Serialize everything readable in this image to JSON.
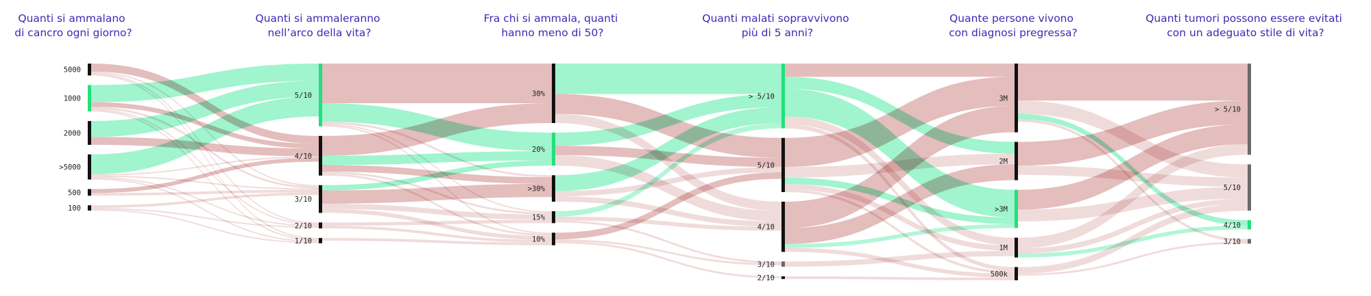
{
  "colors": {
    "title": "#3d2ab2",
    "flow_green": "#66eeb0",
    "flow_red": "#c97c7c",
    "bar_dark": "#111111",
    "bar_green": "#22e07a",
    "bar_gray": "#6a6a6a"
  },
  "columns": [
    {
      "title": [
        "Quanti si ammalano",
        "di cancro ogni giorno?"
      ],
      "nodes": [
        {
          "label": "5000",
          "color": "dark"
        },
        {
          "label": "1000",
          "color": "green"
        },
        {
          "label": "2000",
          "color": "dark"
        },
        {
          "label": ">5000",
          "color": "dark"
        },
        {
          "label": "500",
          "color": "dark"
        },
        {
          "label": "100",
          "color": "dark"
        }
      ]
    },
    {
      "title": [
        "Quanti si ammaleranno",
        "nell’arco della vita?"
      ],
      "nodes": [
        {
          "label": "5/10",
          "color": "green"
        },
        {
          "label": "4/10",
          "color": "dark"
        },
        {
          "label": "3/10",
          "color": "dark"
        },
        {
          "label": "2/10",
          "color": "dark"
        },
        {
          "label": "1/10",
          "color": "dark"
        }
      ]
    },
    {
      "title": [
        "Fra chi si ammala, quanti",
        "hanno meno di 50?"
      ],
      "nodes": [
        {
          "label": "30%",
          "color": "dark"
        },
        {
          "label": "20%",
          "color": "green"
        },
        {
          "label": ">30%",
          "color": "dark"
        },
        {
          "label": "15%",
          "color": "dark"
        },
        {
          "label": "10%",
          "color": "dark"
        }
      ]
    },
    {
      "title": [
        "Quanti malati sopravvivono",
        "più di 5 anni?"
      ],
      "nodes": [
        {
          "label": "> 5/10",
          "color": "green"
        },
        {
          "label": "5/10",
          "color": "dark"
        },
        {
          "label": "4/10",
          "color": "dark"
        },
        {
          "label": "3/10",
          "color": "gray"
        },
        {
          "label": "2/10",
          "color": "dark"
        }
      ]
    },
    {
      "title": [
        "Quante persone vivono",
        "con diagnosi pregressa?"
      ],
      "nodes": [
        {
          "label": "3M",
          "color": "dark"
        },
        {
          "label": "2M",
          "color": "dark"
        },
        {
          "label": ">3M",
          "color": "green"
        },
        {
          "label": "1M",
          "color": "dark"
        },
        {
          "label": "500k",
          "color": "dark"
        }
      ]
    },
    {
      "title": [
        "Quanti tumori possono essere evitati",
        "con un adeguato stile di vita?"
      ],
      "nodes": [
        {
          "label": "> 5/10",
          "color": "gray"
        },
        {
          "label": "5/10",
          "color": "gray"
        },
        {
          "label": "4/10",
          "color": "green"
        },
        {
          "label": "3/10",
          "color": "gray"
        }
      ]
    }
  ],
  "flows": [
    {
      "col": 0,
      "from": "5000",
      "to": "4/10",
      "value": 12,
      "color": "red",
      "strength": "medium"
    },
    {
      "col": 0,
      "from": "5000",
      "to": "3/10",
      "value": 2,
      "color": "red",
      "strength": "light"
    },
    {
      "col": 0,
      "from": "5000",
      "to": "2/10",
      "value": 2,
      "color": "red",
      "strength": "light"
    },
    {
      "col": 0,
      "from": "5000",
      "to": "1/10",
      "value": 2,
      "color": "red",
      "strength": "light"
    },
    {
      "col": 0,
      "from": "1000",
      "to": "5/10",
      "value": 26,
      "color": "green",
      "strength": "strong"
    },
    {
      "col": 0,
      "from": "1000",
      "to": "4/10",
      "value": 7,
      "color": "red",
      "strength": "medium"
    },
    {
      "col": 0,
      "from": "1000",
      "to": "3/10",
      "value": 3,
      "color": "red",
      "strength": "light"
    },
    {
      "col": 0,
      "from": "1000",
      "to": "2/10",
      "value": 2,
      "color": "red",
      "strength": "light"
    },
    {
      "col": 0,
      "from": "1000",
      "to": "1/10",
      "value": 2,
      "color": "red",
      "strength": "light"
    },
    {
      "col": 0,
      "from": "2000",
      "to": "5/10",
      "value": 24,
      "color": "green",
      "strength": "strong"
    },
    {
      "col": 0,
      "from": "2000",
      "to": "4/10",
      "value": 12,
      "color": "red",
      "strength": "medium"
    },
    {
      "col": 0,
      "from": ">5000",
      "to": "5/10",
      "value": 30,
      "color": "green",
      "strength": "strong"
    },
    {
      "col": 0,
      "from": ">5000",
      "to": "4/10",
      "value": 2,
      "color": "red",
      "strength": "light"
    },
    {
      "col": 0,
      "from": ">5000",
      "to": "3/10",
      "value": 2,
      "color": "red",
      "strength": "light"
    },
    {
      "col": 0,
      "from": ">5000",
      "to": "2/10",
      "value": 2,
      "color": "red",
      "strength": "light"
    },
    {
      "col": 0,
      "from": ">5000",
      "to": "1/10",
      "value": 2,
      "color": "red",
      "strength": "light"
    },
    {
      "col": 0,
      "from": "500",
      "to": "4/10",
      "value": 6,
      "color": "red",
      "strength": "medium"
    },
    {
      "col": 0,
      "from": "500",
      "to": "3/10",
      "value": 4,
      "color": "red",
      "strength": "light"
    },
    {
      "col": 0,
      "from": "100",
      "to": "3/10",
      "value": 4,
      "color": "red",
      "strength": "light"
    },
    {
      "col": 0,
      "from": "100",
      "to": "2/10",
      "value": 2,
      "color": "red",
      "strength": "light"
    },
    {
      "col": 0,
      "from": "100",
      "to": "1/10",
      "value": 2,
      "color": "red",
      "strength": "light"
    },
    {
      "col": 1,
      "from": "5/10",
      "to": "30%",
      "value": 60,
      "color": "red",
      "strength": "medium"
    },
    {
      "col": 1,
      "from": "5/10",
      "to": "20%",
      "value": 28,
      "color": "green",
      "strength": "strong"
    },
    {
      "col": 1,
      "from": "5/10",
      "to": ">30%",
      "value": 3,
      "color": "red",
      "strength": "light"
    },
    {
      "col": 1,
      "from": "5/10",
      "to": "15%",
      "value": 2,
      "color": "red",
      "strength": "light"
    },
    {
      "col": 1,
      "from": "5/10",
      "to": "10%",
      "value": 2,
      "color": "red",
      "strength": "light"
    },
    {
      "col": 1,
      "from": "4/10",
      "to": "30%",
      "value": 30,
      "color": "red",
      "strength": "medium"
    },
    {
      "col": 1,
      "from": "4/10",
      "to": "20%",
      "value": 14,
      "color": "green",
      "strength": "strong"
    },
    {
      "col": 1,
      "from": "4/10",
      "to": ">30%",
      "value": 10,
      "color": "red",
      "strength": "medium"
    },
    {
      "col": 1,
      "from": "4/10",
      "to": "15%",
      "value": 3,
      "color": "red",
      "strength": "light"
    },
    {
      "col": 1,
      "from": "4/10",
      "to": "10%",
      "value": 3,
      "color": "red",
      "strength": "light"
    },
    {
      "col": 1,
      "from": "3/10",
      "to": "20%",
      "value": 8,
      "color": "green",
      "strength": "strong"
    },
    {
      "col": 1,
      "from": "3/10",
      "to": ">30%",
      "value": 20,
      "color": "red",
      "strength": "medium"
    },
    {
      "col": 1,
      "from": "3/10",
      "to": "15%",
      "value": 8,
      "color": "red",
      "strength": "light"
    },
    {
      "col": 1,
      "from": "3/10",
      "to": "10%",
      "value": 6,
      "color": "red",
      "strength": "light"
    },
    {
      "col": 1,
      "from": "2/10",
      "to": "15%",
      "value": 5,
      "color": "red",
      "strength": "light"
    },
    {
      "col": 1,
      "from": "2/10",
      "to": "10%",
      "value": 4,
      "color": "red",
      "strength": "light"
    },
    {
      "col": 1,
      "from": "1/10",
      "to": "10%",
      "value": 4,
      "color": "red",
      "strength": "light"
    },
    {
      "col": 2,
      "from": "30%",
      "to": "> 5/10",
      "value": 46,
      "color": "green",
      "strength": "strong"
    },
    {
      "col": 2,
      "from": "30%",
      "to": "5/10",
      "value": 30,
      "color": "red",
      "strength": "medium"
    },
    {
      "col": 2,
      "from": "30%",
      "to": "4/10",
      "value": 14,
      "color": "red",
      "strength": "light"
    },
    {
      "col": 2,
      "from": "20%",
      "to": "> 5/10",
      "value": 20,
      "color": "green",
      "strength": "strong"
    },
    {
      "col": 2,
      "from": "20%",
      "to": "5/10",
      "value": 14,
      "color": "red",
      "strength": "medium"
    },
    {
      "col": 2,
      "from": "20%",
      "to": "4/10",
      "value": 16,
      "color": "red",
      "strength": "light"
    },
    {
      "col": 2,
      "from": ">30%",
      "to": "> 5/10",
      "value": 24,
      "color": "green",
      "strength": "strong"
    },
    {
      "col": 2,
      "from": ">30%",
      "to": "5/10",
      "value": 8,
      "color": "red",
      "strength": "light"
    },
    {
      "col": 2,
      "from": ">30%",
      "to": "4/10",
      "value": 8,
      "color": "red",
      "strength": "light"
    },
    {
      "col": 2,
      "from": "15%",
      "to": "> 5/10",
      "value": 8,
      "color": "green",
      "strength": "medium"
    },
    {
      "col": 2,
      "from": "15%",
      "to": "4/10",
      "value": 6,
      "color": "red",
      "strength": "light"
    },
    {
      "col": 2,
      "from": "15%",
      "to": "3/10",
      "value": 3,
      "color": "red",
      "strength": "light"
    },
    {
      "col": 2,
      "from": "10%",
      "to": "5/10",
      "value": 10,
      "color": "red",
      "strength": "medium"
    },
    {
      "col": 2,
      "from": "10%",
      "to": "3/10",
      "value": 3,
      "color": "red",
      "strength": "light"
    },
    {
      "col": 2,
      "from": "10%",
      "to": "2/10",
      "value": 3,
      "color": "red",
      "strength": "light"
    },
    {
      "col": 3,
      "from": "> 5/10",
      "to": "3M",
      "value": 20,
      "color": "red",
      "strength": "medium"
    },
    {
      "col": 3,
      "from": "> 5/10",
      "to": "2M",
      "value": 18,
      "color": "green",
      "strength": "strong"
    },
    {
      "col": 3,
      "from": "> 5/10",
      "to": ">3M",
      "value": 42,
      "color": "green",
      "strength": "strong"
    },
    {
      "col": 3,
      "from": "> 5/10",
      "to": "1M",
      "value": 12,
      "color": "red",
      "strength": "light"
    },
    {
      "col": 3,
      "from": "> 5/10",
      "to": "500k",
      "value": 6,
      "color": "red",
      "strength": "light"
    },
    {
      "col": 3,
      "from": "5/10",
      "to": "3M",
      "value": 44,
      "color": "red",
      "strength": "medium"
    },
    {
      "col": 3,
      "from": "5/10",
      "to": "2M",
      "value": 16,
      "color": "red",
      "strength": "light"
    },
    {
      "col": 3,
      "from": "5/10",
      "to": ">3M",
      "value": 10,
      "color": "green",
      "strength": "strong"
    },
    {
      "col": 3,
      "from": "5/10",
      "to": "1M",
      "value": 8,
      "color": "red",
      "strength": "light"
    },
    {
      "col": 3,
      "from": "5/10",
      "to": "500k",
      "value": 4,
      "color": "red",
      "strength": "light"
    },
    {
      "col": 3,
      "from": "4/10",
      "to": "3M",
      "value": 40,
      "color": "red",
      "strength": "medium"
    },
    {
      "col": 3,
      "from": "4/10",
      "to": "2M",
      "value": 24,
      "color": "red",
      "strength": "medium"
    },
    {
      "col": 3,
      "from": "4/10",
      "to": ">3M",
      "value": 6,
      "color": "green",
      "strength": "medium"
    },
    {
      "col": 3,
      "from": "4/10",
      "to": "500k",
      "value": 6,
      "color": "red",
      "strength": "light"
    },
    {
      "col": 3,
      "from": "3/10",
      "to": "1M",
      "value": 8,
      "color": "red",
      "strength": "light"
    },
    {
      "col": 3,
      "from": "2/10",
      "to": "500k",
      "value": 4,
      "color": "red",
      "strength": "light"
    },
    {
      "col": 4,
      "from": "3M",
      "to": "> 5/10",
      "value": 56,
      "color": "red",
      "strength": "medium"
    },
    {
      "col": 4,
      "from": "3M",
      "to": "5/10",
      "value": 20,
      "color": "red",
      "strength": "light"
    },
    {
      "col": 4,
      "from": "3M",
      "to": "4/10",
      "value": 8,
      "color": "green",
      "strength": "strong"
    },
    {
      "col": 4,
      "from": "3M",
      "to": "3/10",
      "value": 4,
      "color": "red",
      "strength": "light"
    },
    {
      "col": 4,
      "from": "2M",
      "to": "> 5/10",
      "value": 36,
      "color": "red",
      "strength": "medium"
    },
    {
      "col": 4,
      "from": "2M",
      "to": "5/10",
      "value": 14,
      "color": "red",
      "strength": "light"
    },
    {
      "col": 4,
      "from": ">3M",
      "to": "> 5/10",
      "value": 30,
      "color": "red",
      "strength": "medium"
    },
    {
      "col": 4,
      "from": ">3M",
      "to": "5/10",
      "value": 18,
      "color": "red",
      "strength": "light"
    },
    {
      "col": 4,
      "from": "1M",
      "to": "> 5/10",
      "value": 16,
      "color": "red",
      "strength": "light"
    },
    {
      "col": 4,
      "from": "1M",
      "to": "4/10",
      "value": 6,
      "color": "green",
      "strength": "medium"
    },
    {
      "col": 4,
      "from": "1M",
      "to": "5/10",
      "value": 8,
      "color": "red",
      "strength": "light"
    },
    {
      "col": 4,
      "from": "500k",
      "to": "5/10",
      "value": 10,
      "color": "red",
      "strength": "light"
    },
    {
      "col": 4,
      "from": "500k",
      "to": "3/10",
      "value": 3,
      "color": "red",
      "strength": "light"
    }
  ]
}
